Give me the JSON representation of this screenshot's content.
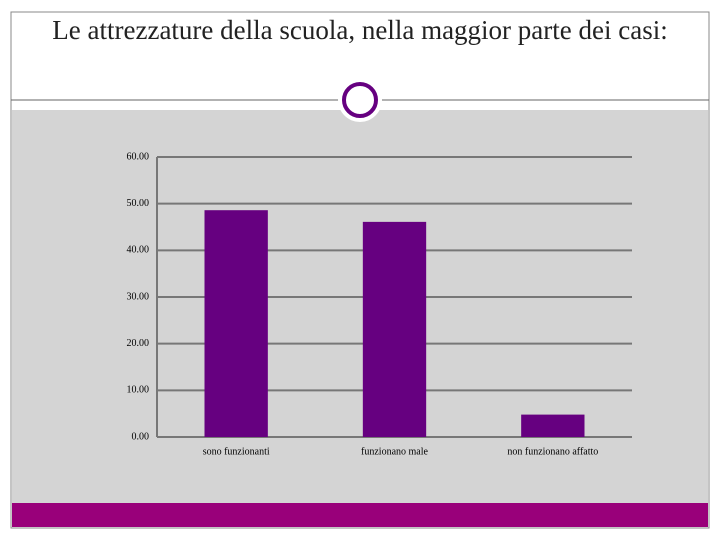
{
  "chart_data": {
    "type": "bar",
    "title": "Le attrezzature della scuola, nella maggior parte dei casi:",
    "categories": [
      "sono funzionanti",
      "funzionano male",
      "non funzionano affatto"
    ],
    "values": [
      48.6,
      46.1,
      4.8
    ],
    "color": "#660080",
    "ylim": [
      0,
      60
    ],
    "yticks": [
      {
        "value": 0,
        "label": "0.00"
      },
      {
        "value": 10,
        "label": "10.00"
      },
      {
        "value": 20,
        "label": "20.00"
      },
      {
        "value": 30,
        "label": "30.00"
      },
      {
        "value": 40,
        "label": "40.00"
      },
      {
        "value": 50,
        "label": "50.00"
      },
      {
        "value": 60,
        "label": "60.00"
      }
    ],
    "grid": true
  }
}
